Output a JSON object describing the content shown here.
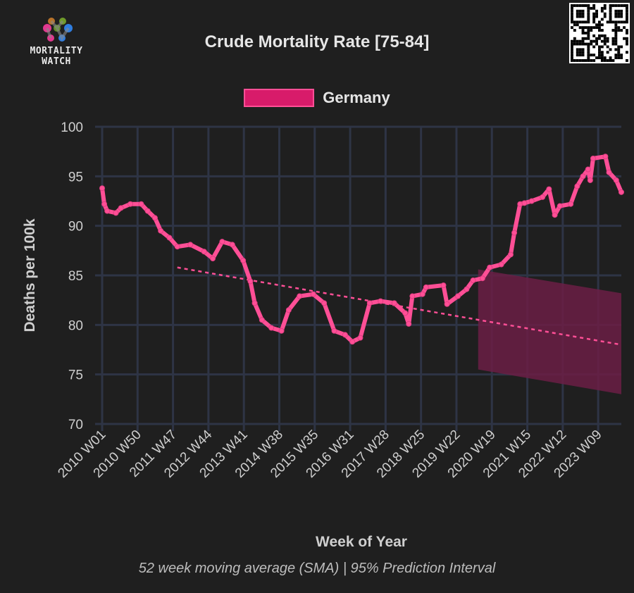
{
  "logo": {
    "line1": "MORTALITY",
    "line2": "WATCH"
  },
  "title": "Crude Mortality Rate [75-84]",
  "caption": "52 week moving average (SMA) | 95% Prediction Interval",
  "colors": {
    "series": "#ff4f96",
    "band": "#6b1f45",
    "grid": "#2e3445",
    "background": "#1f1f1f"
  },
  "chart_data": {
    "type": "line",
    "title": "Crude Mortality Rate [75-84]",
    "xlabel": "Week of Year",
    "ylabel": "Deaths per 100k",
    "ylim": [
      70,
      100
    ],
    "yticks": [
      70,
      75,
      80,
      85,
      90,
      95,
      100
    ],
    "xlim_weeks": [
      0,
      718
    ],
    "xtick_labels": [
      "2010 W01",
      "2010 W50",
      "2011 W47",
      "2012 W44",
      "2013 W41",
      "2014 W38",
      "2015 W35",
      "2016 W31",
      "2017 W28",
      "2018 W25",
      "2019 W22",
      "2020 W19",
      "2021 W15",
      "2022 W12",
      "2023 W09"
    ],
    "xtick_step_weeks": 49,
    "legend": {
      "position": "top",
      "entries": [
        "Germany"
      ]
    },
    "grid": true,
    "series": [
      {
        "name": "Germany",
        "x_weeks_since_2010W01": [
          0,
          3,
          7,
          19,
          26,
          39,
          54,
          63,
          73,
          81,
          93,
          104,
          122,
          141,
          153,
          166,
          180,
          195,
          205,
          211,
          221,
          234,
          248,
          258,
          273,
          292,
          307,
          321,
          336,
          346,
          357,
          370,
          385,
          404,
          419,
          424,
          429,
          443,
          448,
          472,
          477,
          492,
          504,
          513,
          526,
          536,
          552,
          565,
          570,
          578,
          584,
          594,
          609,
          618,
          626,
          633,
          648,
          657,
          665,
          672,
          675,
          679,
          696,
          701,
          711,
          718
        ],
        "values": [
          93.8,
          92.2,
          91.5,
          91.3,
          91.8,
          92.2,
          92.2,
          91.5,
          90.8,
          89.5,
          88.8,
          87.9,
          88.1,
          87.4,
          86.7,
          88.4,
          88.1,
          86.5,
          84.4,
          82.2,
          80.5,
          79.7,
          79.4,
          81.5,
          82.9,
          83.1,
          82.2,
          79.4,
          79.0,
          78.3,
          78.7,
          82.2,
          82.4,
          82.2,
          81.2,
          80.1,
          82.9,
          83.1,
          83.8,
          84.0,
          82.1,
          82.9,
          83.6,
          84.5,
          84.7,
          85.8,
          86.1,
          87.1,
          89.3,
          92.2,
          92.3,
          92.5,
          92.9,
          93.7,
          91.1,
          92.0,
          92.2,
          94.0,
          95.0,
          95.7,
          94.6,
          96.8,
          97.0,
          95.4,
          94.6,
          93.4
        ]
      }
    ],
    "trend": {
      "style": "dashed",
      "x_weeks": [
        104,
        718
      ],
      "values": [
        85.8,
        78.0
      ]
    },
    "prediction_interval": {
      "label": "95% Prediction Interval",
      "x_weeks": [
        520,
        718
      ],
      "upper": [
        85.6,
        83.2
      ],
      "lower": [
        75.5,
        73.0
      ]
    }
  }
}
